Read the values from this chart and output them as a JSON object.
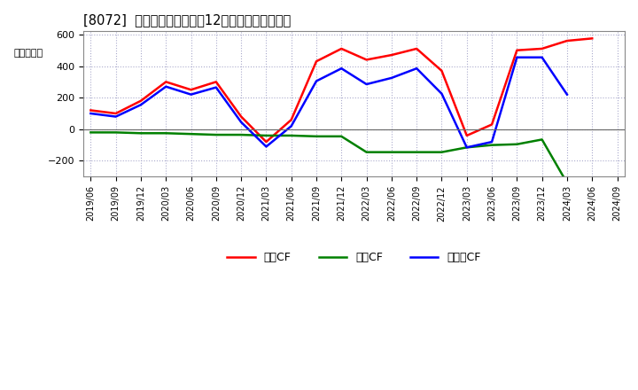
{
  "title": "[8072]  キャッシュフローの12か月移動合計の推移",
  "ylabel": "（百万円）",
  "background_color": "#ffffff",
  "plot_bg_color": "#ffffff",
  "grid_color": "#aaaacc",
  "dates": [
    "2019/06",
    "2019/09",
    "2019/12",
    "2020/03",
    "2020/06",
    "2020/09",
    "2020/12",
    "2021/03",
    "2021/06",
    "2021/09",
    "2021/12",
    "2022/03",
    "2022/06",
    "2022/09",
    "2022/12",
    "2023/03",
    "2023/06",
    "2023/09",
    "2023/12",
    "2024/03",
    "2024/06",
    "2024/09"
  ],
  "operating_cf": [
    120,
    100,
    180,
    300,
    250,
    300,
    80,
    -80,
    60,
    430,
    510,
    440,
    470,
    510,
    370,
    -40,
    30,
    500,
    510,
    560,
    575,
    null
  ],
  "investing_cf": [
    -20,
    -20,
    -25,
    -25,
    -30,
    -35,
    -35,
    -40,
    -40,
    -45,
    -45,
    -145,
    -145,
    -145,
    -145,
    -115,
    -100,
    -95,
    -65,
    -340,
    null,
    null
  ],
  "free_cf": [
    100,
    80,
    155,
    270,
    220,
    265,
    45,
    -110,
    20,
    305,
    385,
    285,
    325,
    385,
    225,
    -115,
    -80,
    455,
    455,
    220,
    null,
    null
  ],
  "operating_color": "#ff0000",
  "investing_color": "#008000",
  "free_color": "#0000ff",
  "ylim": [
    -300,
    620
  ],
  "yticks": [
    -200,
    0,
    200,
    400,
    600
  ],
  "linewidth": 1.8,
  "legend_labels": [
    "営業CF",
    "投資CF",
    "フリーCF"
  ]
}
